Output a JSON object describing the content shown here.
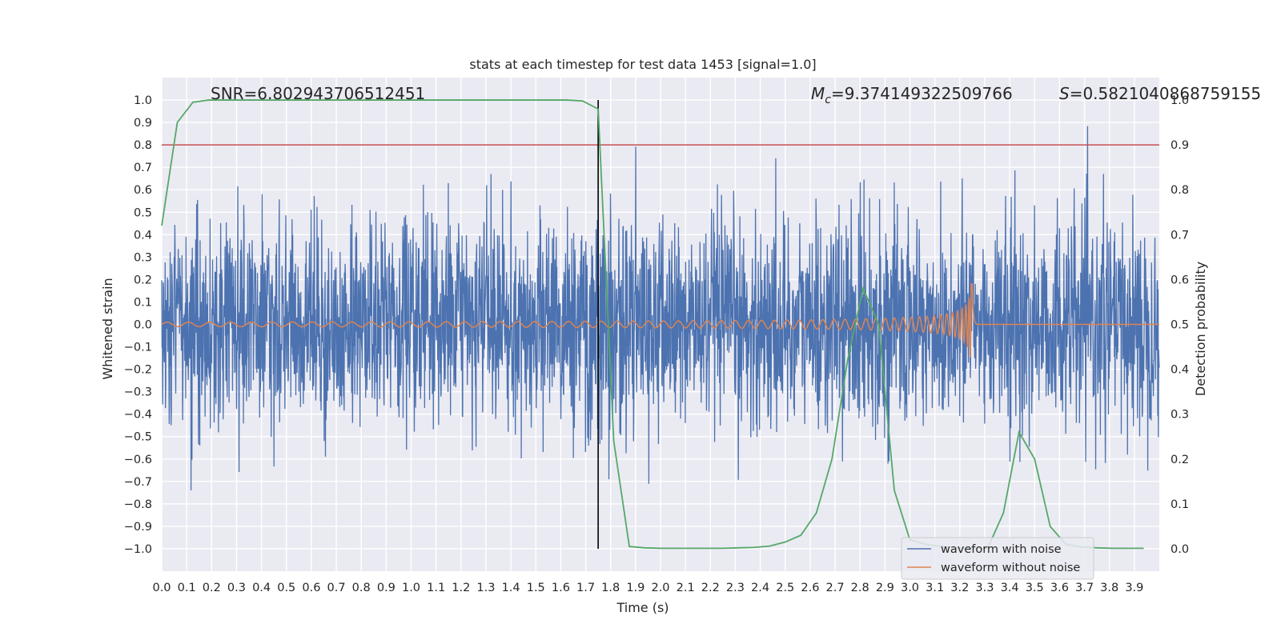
{
  "chart_data": {
    "type": "line",
    "title": "stats at each timestep for test data 1453 [signal=1.0]",
    "xlabel": "Time (s)",
    "ylabel": "Whitened strain",
    "y2label": "Detection probability",
    "xlim": [
      0.0,
      4.0
    ],
    "ylim": [
      -1.1,
      1.1
    ],
    "y2lim": [
      -0.05,
      1.05
    ],
    "x_ticks": [
      "0.0",
      "0.1",
      "0.2",
      "0.3",
      "0.4",
      "0.5",
      "0.6",
      "0.7",
      "0.8",
      "0.9",
      "1.0",
      "1.1",
      "1.2",
      "1.3",
      "1.4",
      "1.5",
      "1.6",
      "1.7",
      "1.8",
      "1.9",
      "2.0",
      "2.1",
      "2.2",
      "2.3",
      "2.4",
      "2.5",
      "2.6",
      "2.7",
      "2.8",
      "2.9",
      "3.0",
      "3.1",
      "3.2",
      "3.3",
      "3.4",
      "3.5",
      "3.6",
      "3.7",
      "3.8",
      "3.9"
    ],
    "y_ticks": [
      "1.0",
      "0.9",
      "0.8",
      "0.7",
      "0.6",
      "0.5",
      "0.4",
      "0.3",
      "0.2",
      "0.1",
      "0.0",
      "−0.1",
      "−0.2",
      "−0.3",
      "−0.4",
      "−0.5",
      "−0.6",
      "−0.7",
      "−0.8",
      "−0.9",
      "−1.0"
    ],
    "y2_ticks": [
      "1.0",
      "0.9",
      "0.8",
      "0.7",
      "0.6",
      "0.5",
      "0.4",
      "0.3",
      "0.2",
      "0.1",
      "0.0"
    ],
    "threshold": 0.8,
    "vline_x": 1.75,
    "merger_time": 3.25,
    "annotations": {
      "snr": "SNR=6.802943706512451",
      "mc_symbol": "M",
      "mc_sub": "c",
      "mc_value": "=9.374149322509766",
      "s_symbol": "S",
      "s_value": "=0.5821040868759155"
    },
    "series": [
      {
        "name": "waveform with noise",
        "color": "#4c72b0",
        "kind": "noisy-strain",
        "typical_amplitude": 0.42,
        "peak_amplitude": 0.99
      },
      {
        "name": "waveform without noise",
        "color": "#dd8452",
        "kind": "chirp",
        "start_amplitude": 0.01,
        "peak_amplitude": 0.18,
        "end_time": 3.25
      },
      {
        "name": "detection probability",
        "color": "#55a868",
        "axis": "right",
        "x": [
          0.0,
          0.0625,
          0.125,
          0.1875,
          0.25,
          0.3125,
          0.375,
          0.4375,
          0.5,
          0.5625,
          0.625,
          0.6875,
          0.75,
          0.8125,
          0.875,
          0.9375,
          1.0,
          1.0625,
          1.125,
          1.1875,
          1.25,
          1.3125,
          1.375,
          1.4375,
          1.5,
          1.5625,
          1.625,
          1.6875,
          1.75,
          1.8125,
          1.875,
          1.9375,
          2.0,
          2.0625,
          2.125,
          2.1875,
          2.25,
          2.3125,
          2.375,
          2.4375,
          2.5,
          2.5625,
          2.625,
          2.6875,
          2.75,
          2.8125,
          2.875,
          2.9375,
          3.0,
          3.0625,
          3.125,
          3.1875,
          3.25,
          3.3125,
          3.375,
          3.4375,
          3.5,
          3.5625,
          3.625,
          3.6875,
          3.75,
          3.8125,
          3.875,
          3.9375
        ],
        "values": [
          0.72,
          0.95,
          0.995,
          1.0,
          1.0,
          1.0,
          1.0,
          1.0,
          1.0,
          1.0,
          1.0,
          1.0,
          1.0,
          1.0,
          1.0,
          1.0,
          1.0,
          1.0,
          1.0,
          1.0,
          1.0,
          1.0,
          1.0,
          1.0,
          1.0,
          1.0,
          1.0,
          0.998,
          0.98,
          0.24,
          0.005,
          0.002,
          0.001,
          0.001,
          0.001,
          0.001,
          0.001,
          0.002,
          0.003,
          0.006,
          0.015,
          0.03,
          0.08,
          0.2,
          0.42,
          0.58,
          0.5,
          0.13,
          0.02,
          0.01,
          0.005,
          0.002,
          0.001,
          0.002,
          0.08,
          0.26,
          0.2,
          0.05,
          0.01,
          0.004,
          0.002,
          0.001,
          0.001,
          0.001
        ]
      }
    ],
    "legend_position": "lower-right"
  }
}
